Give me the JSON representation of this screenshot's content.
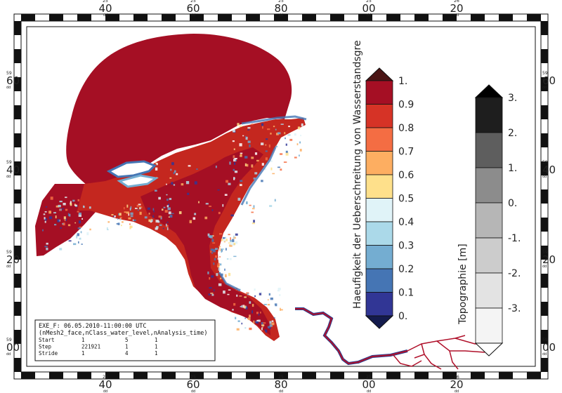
{
  "map": {
    "frame_top_labels": [
      {
        "sup": "25",
        "main": "40",
        "sub": "dd"
      },
      {
        "sup": "25",
        "main": "60",
        "sub": "dd"
      },
      {
        "sup": "25",
        "main": "80",
        "sub": "dd"
      },
      {
        "sup": "25",
        "main": "00",
        "sub": "dd"
      },
      {
        "sup": "26",
        "main": "20",
        "sub": "dd"
      }
    ],
    "frame_bottom_labels": [
      {
        "sup": "25",
        "main": "40",
        "sub": "dd"
      },
      {
        "sup": "25",
        "main": "60",
        "sub": "dd"
      },
      {
        "sup": "25",
        "main": "80",
        "sub": "dd"
      },
      {
        "sup": "25",
        "main": "00",
        "sub": "dd"
      },
      {
        "sup": "26",
        "main": "20",
        "sub": "dd"
      }
    ],
    "frame_left_labels": [
      {
        "sup": "59",
        "main": "60",
        "sub": "dd"
      },
      {
        "sup": "59",
        "main": "40",
        "sub": "dd"
      },
      {
        "sup": "59",
        "main": "20",
        "sub": "dd"
      },
      {
        "sup": "59",
        "main": "00",
        "sub": "dd"
      }
    ],
    "frame_right_labels": [
      {
        "sup": "59",
        "main": "60",
        "sub": "dd"
      },
      {
        "sup": "59",
        "main": "40",
        "sub": "dd"
      },
      {
        "sup": "59",
        "main": "20",
        "sub": "dd"
      },
      {
        "sup": "59",
        "main": "00",
        "sub": "dd"
      }
    ]
  },
  "colorbar_probability": {
    "title": "Haeufigkeit der Ueberschreitung von Wasserstandsgre",
    "tick_labels": [
      "1.",
      "0.9",
      "0.8",
      "0.7",
      "0.6",
      "0.5",
      "0.4",
      "0.3",
      "0.2",
      "0.1",
      "0."
    ],
    "colors": [
      "#a50f24",
      "#d63326",
      "#f46d43",
      "#fdae61",
      "#fee08b",
      "#e0f3f8",
      "#abd9e9",
      "#74add1",
      "#4575b4",
      "#313695"
    ],
    "over_color": "#4a1414",
    "under_color": "#141b4d"
  },
  "colorbar_topography": {
    "title": "Topographie [m]",
    "tick_labels": [
      "3.",
      "2.",
      "1.",
      "0.",
      "-1.",
      "-2.",
      "-3."
    ],
    "colors": [
      "#1e1e1e",
      "#5e5e5e",
      "#8c8c8c",
      "#b6b6b6",
      "#cccccc",
      "#e3e3e3",
      "#f4f4f4"
    ],
    "over_color": "#000000",
    "under_color": "#ffffff"
  },
  "info_box": {
    "line1": "EXE_F: 06.05.2010-11:00:00 UTC",
    "line2": "(nMesh2_face,nClass_water_level,nAnalysis_time)",
    "rows": [
      {
        "label": "Start",
        "v1": "1",
        "v2": "5",
        "v3": "1"
      },
      {
        "label": "Step",
        "v1": "221921",
        "v2": "1",
        "v3": "1"
      },
      {
        "label": "Stride",
        "v1": "1",
        "v2": "4",
        "v3": "1"
      }
    ]
  },
  "colors": {
    "water_high": "#a50f24",
    "water_mid": "#f46d43",
    "water_low": "#4575b4",
    "river": "#b0102a"
  }
}
